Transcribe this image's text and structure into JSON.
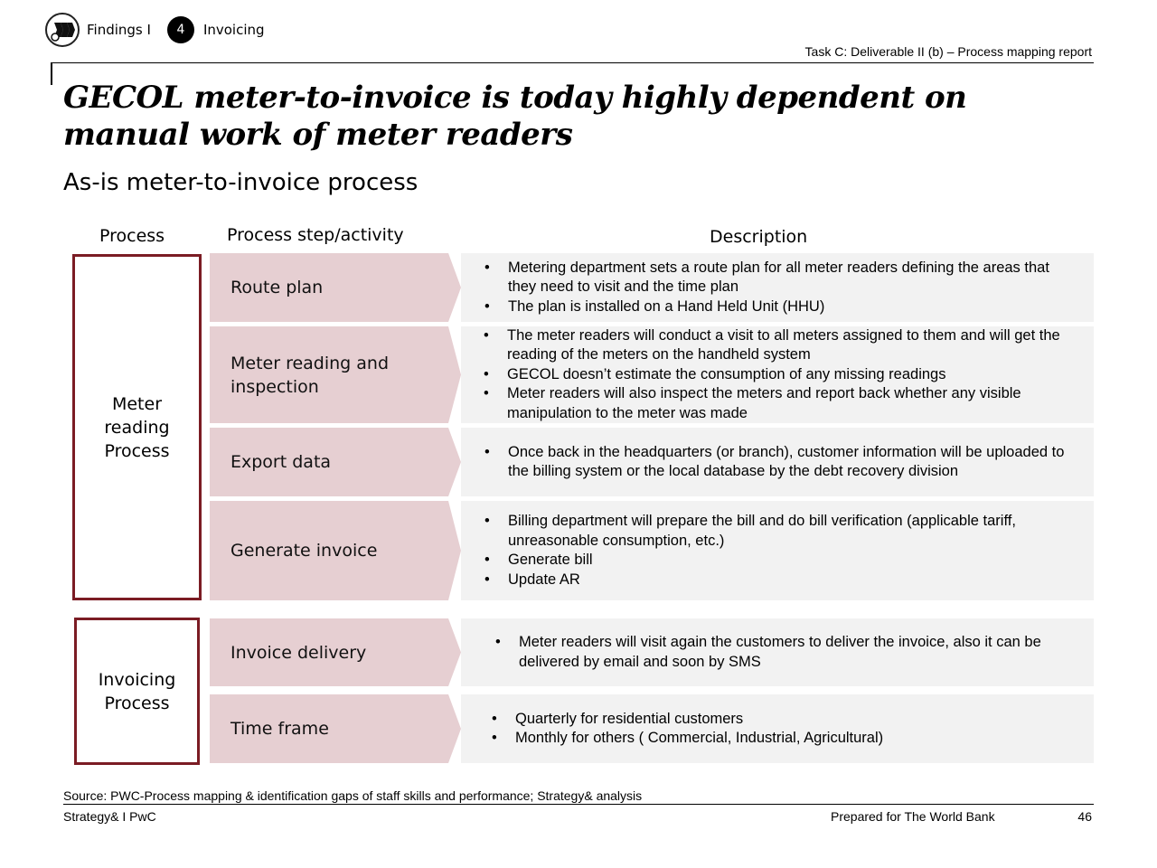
{
  "nav": {
    "section": "Findings I",
    "step_number": "4",
    "current": "Invoicing"
  },
  "header": {
    "task": "Task C: Deliverable II (b) – Process mapping report"
  },
  "title": "GECOL meter-to-invoice is today highly dependent on manual work of meter readers",
  "subtitle": "As-is meter-to-invoice process",
  "columns": {
    "process": "Process",
    "step": "Process step/activity",
    "description": "Description"
  },
  "groups": [
    {
      "label": "Meter reading Process"
    },
    {
      "label": "Invoicing Process"
    }
  ],
  "rows": [
    {
      "step": "Route plan",
      "bullets": [
        "Metering department sets a route plan for all meter readers defining the areas that they need to visit and the time plan",
        "The plan is installed on a Hand Held Unit (HHU)"
      ]
    },
    {
      "step": "Meter reading and inspection",
      "bullets": [
        "The meter readers will conduct a visit to all meters assigned to them and will get the reading of the meters on the handheld system",
        "GECOL doesn’t estimate the consumption of any missing readings",
        "Meter readers will also inspect the meters and report back whether any visible manipulation to the meter was made"
      ]
    },
    {
      "step": "Export data",
      "bullets": [
        "Once back in the headquarters (or branch), customer information will be uploaded to the billing system or the local database by the debt recovery division"
      ]
    },
    {
      "step": "Generate invoice",
      "bullets": [
        "Billing department will prepare the bill and do bill verification (applicable tariff, unreasonable consumption, etc.)",
        "Generate bill",
        "Update AR"
      ]
    },
    {
      "step": "Invoice delivery",
      "bullets": [
        "Meter readers will visit again the customers to deliver the invoice, also it can be delivered by email and soon by SMS"
      ]
    },
    {
      "step": "Time frame",
      "bullets": [
        "Quarterly for residential customers",
        "Monthly for others  ( Commercial, Industrial, Agricultural)"
      ]
    }
  ],
  "colors": {
    "group_border": "#7b1c24",
    "step_fill": "#e6cfd2",
    "desc_fill": "#f2f2f2"
  },
  "footer": {
    "source": "Source: PWC-Process mapping & identification gaps of staff skills and performance; Strategy& analysis",
    "left": "Strategy& I PwC",
    "prepared": "Prepared for The World Bank",
    "page": "46"
  }
}
